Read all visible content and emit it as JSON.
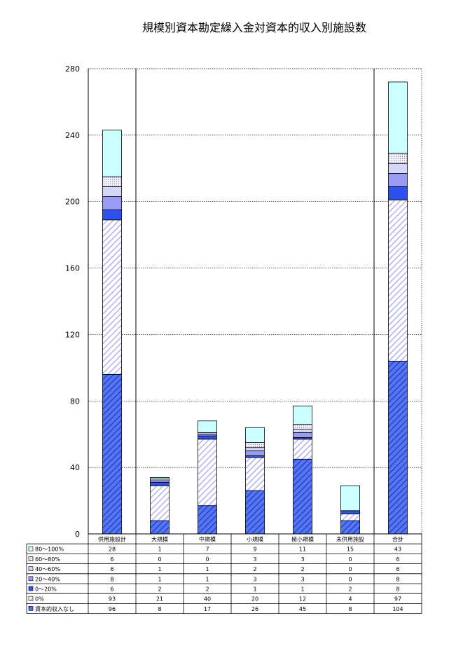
{
  "chart_data": {
    "type": "bar",
    "stacked": true,
    "title": "規模別資本勘定繰入金対資本的収入別施設数",
    "categories": [
      "供用施設計",
      "大規模",
      "中規模",
      "小規模",
      "極小規模",
      "未供用施設",
      "合計"
    ],
    "ylim": [
      0,
      280
    ],
    "yticks": [
      0,
      40,
      80,
      120,
      160,
      200,
      240,
      280
    ],
    "grid": true,
    "series": [
      {
        "name": "資本的収入なし",
        "values": [
          96,
          8,
          17,
          26,
          45,
          8,
          104
        ],
        "color": "#3b5bdc",
        "pattern": "hatch-dense"
      },
      {
        "name": "0%",
        "values": [
          93,
          21,
          40,
          20,
          12,
          4,
          97
        ],
        "color": "#b9b4f5",
        "pattern": "hatch-light"
      },
      {
        "name": "0～20%",
        "values": [
          6,
          2,
          2,
          1,
          1,
          2,
          8
        ],
        "color": "#2e50ec",
        "pattern": "solid"
      },
      {
        "name": "20～40%",
        "values": [
          8,
          1,
          1,
          3,
          3,
          0,
          8
        ],
        "color": "#9a9cf4",
        "pattern": "solid"
      },
      {
        "name": "40～60%",
        "values": [
          6,
          1,
          1,
          2,
          2,
          0,
          6
        ],
        "color": "#d4d8f7",
        "pattern": "solid"
      },
      {
        "name": "60～80%",
        "values": [
          6,
          0,
          0,
          3,
          3,
          0,
          6
        ],
        "color": "#eeeeff",
        "pattern": "dots"
      },
      {
        "name": "80～100%",
        "values": [
          28,
          1,
          7,
          9,
          11,
          15,
          43
        ],
        "color": "#ccffff",
        "pattern": "solid"
      }
    ],
    "table_row_order": [
      "80～100%",
      "60～80%",
      "40～60%",
      "20～40%",
      "0～20%",
      "0%",
      "資本的収入なし"
    ]
  }
}
